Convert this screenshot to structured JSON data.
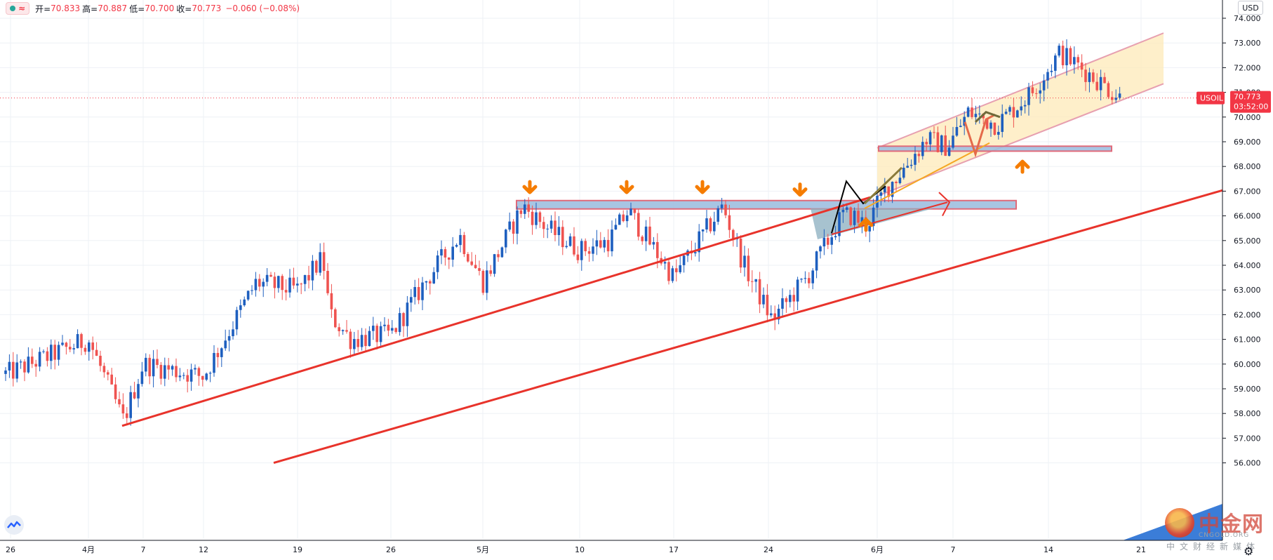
{
  "header": {
    "legend_icon": "wave-icon",
    "wave_glyph": "≈",
    "open_label": "开=",
    "open": "70.833",
    "high_label": "高=",
    "high": "70.887",
    "low_label": "低=",
    "low": "70.700",
    "close_label": "收=",
    "close": "70.773",
    "change": "−0.060 (−0.08%)"
  },
  "currency": "USD",
  "symbol": "USOIL",
  "last_price": "70.773",
  "countdown": "03:52:00",
  "colors": {
    "up": "#1e5fbf",
    "down": "#ef5350",
    "trendline": "#e8332b",
    "price_line": "#f23645",
    "zone_fill": "#9fbfe0",
    "zone_border": "#e06a7a",
    "channel_fill": "#fde9b8",
    "arrow": "#f57c00",
    "triangle_fill": "#8aaebf"
  },
  "watermark": {
    "logo": "zhongjin-logo-icon",
    "name": "中金网",
    "en": "CNGOLD.ORG",
    "sub": "中文财经新媒体"
  },
  "chart_data": {
    "type": "candlestick",
    "instrument": "USOIL",
    "ylim": [
      56.0,
      74.7
    ],
    "y_ticks": [
      "74.000",
      "73.000",
      "72.000",
      "71.000",
      "70.000",
      "69.000",
      "68.000",
      "67.000",
      "66.000",
      "65.000",
      "64.000",
      "63.000",
      "62.000",
      "61.000",
      "60.000",
      "59.000",
      "58.000",
      "57.000",
      "56.000"
    ],
    "x_ticks": [
      "26",
      "4月",
      "7",
      "12",
      "19",
      "26",
      "5月",
      "10",
      "17",
      "24",
      "6月",
      "7",
      "14",
      "21"
    ],
    "last_price": 70.773,
    "price_path": [
      {
        "x": "26",
        "price": 59.6
      },
      {
        "x": "4月",
        "price": 61.0
      },
      {
        "x": "5",
        "price": 57.7
      },
      {
        "x": "7",
        "price": 60.0
      },
      {
        "x": "12",
        "price": 59.5
      },
      {
        "x": "15",
        "price": 63.3
      },
      {
        "x": "19",
        "price": 63.0
      },
      {
        "x": "21",
        "price": 64.3
      },
      {
        "x": "22",
        "price": 62.0
      },
      {
        "x": "24",
        "price": 61.0
      },
      {
        "x": "26",
        "price": 61.2
      },
      {
        "x": "28",
        "price": 63.5
      },
      {
        "x": "30",
        "price": 65.2
      },
      {
        "x": "5月",
        "price": 63.3
      },
      {
        "x": "6",
        "price": 66.4
      },
      {
        "x": "7",
        "price": 65.5
      },
      {
        "x": "10",
        "price": 64.6
      },
      {
        "x": "12",
        "price": 65.0
      },
      {
        "x": "13",
        "price": 66.2
      },
      {
        "x": "14",
        "price": 63.5
      },
      {
        "x": "17",
        "price": 65.0
      },
      {
        "x": "18",
        "price": 66.4
      },
      {
        "x": "19",
        "price": 64.0
      },
      {
        "x": "21",
        "price": 61.8
      },
      {
        "x": "24",
        "price": 63.5
      },
      {
        "x": "25",
        "price": 66.0
      },
      {
        "x": "27",
        "price": 66.0
      },
      {
        "x": "28",
        "price": 65.6
      },
      {
        "x": "6月",
        "price": 67.0
      },
      {
        "x": "2",
        "price": 68.0
      },
      {
        "x": "4",
        "price": 69.1
      },
      {
        "x": "7",
        "price": 68.8
      },
      {
        "x": "9",
        "price": 70.2
      },
      {
        "x": "11",
        "price": 69.7
      },
      {
        "x": "14",
        "price": 71.0
      },
      {
        "x": "15",
        "price": 72.6
      },
      {
        "x": "16",
        "price": 72.0
      },
      {
        "x": "18",
        "price": 70.8
      }
    ],
    "annotations": {
      "resistance_zone": [
        66.3,
        66.6
      ],
      "support_zone": [
        68.6,
        68.8
      ],
      "channel": "ascending, upper-right",
      "trendlines": 2,
      "markers": "down arrows at 66.6 resistance touches, up arrows at support"
    }
  }
}
